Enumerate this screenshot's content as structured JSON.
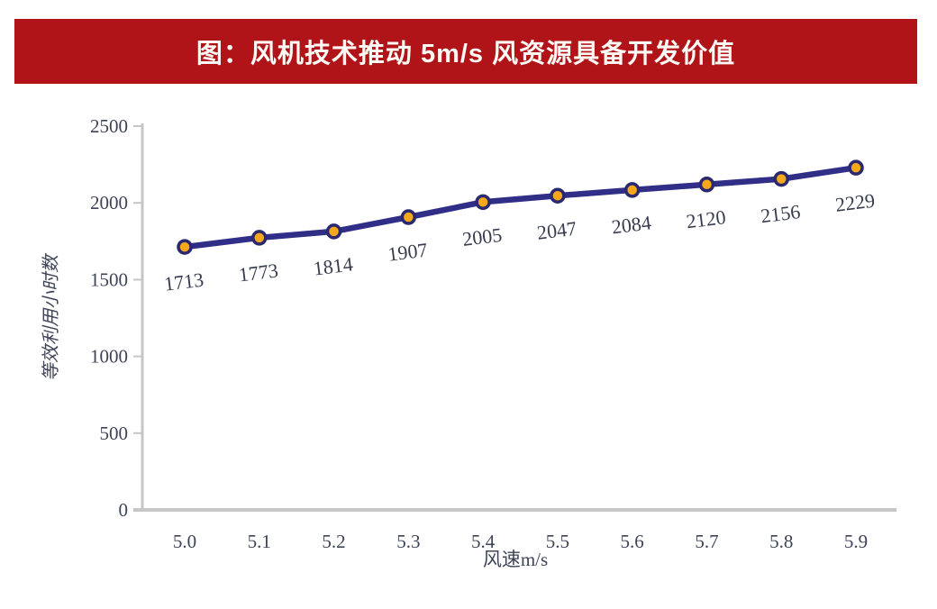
{
  "banner": {
    "title": "图：风机技术推动 5m/s 风资源具备开发价值",
    "bg_color": "#b01318",
    "text_color": "#fdf9f5"
  },
  "chart_data": {
    "type": "line",
    "categories": [
      "5.0",
      "5.1",
      "5.2",
      "5.3",
      "5.4",
      "5.5",
      "5.6",
      "5.7",
      "5.8",
      "5.9"
    ],
    "series": [
      {
        "name": "等效利用小时数",
        "values": [
          1713,
          1773,
          1814,
          1907,
          2005,
          2047,
          2084,
          2120,
          2156,
          2229
        ]
      }
    ],
    "title": "图：风机技术推动 5m/s 风资源具备开发价值",
    "xlabel": "风速m/s",
    "ylabel": "等效利用小时数",
    "ylim": [
      0,
      2500
    ],
    "yticks": [
      0,
      500,
      1000,
      1500,
      2000,
      2500
    ],
    "grid": false,
    "legend": "none",
    "data_labels_shown": true,
    "colors": {
      "line": "#302e86",
      "marker_fill": "#f6a71c",
      "marker_stroke": "#2a2970",
      "axis": "#c6c6c6",
      "tick_label": "#3e4457",
      "data_label": "#363b4e",
      "axis_title": "#3e4457"
    }
  }
}
